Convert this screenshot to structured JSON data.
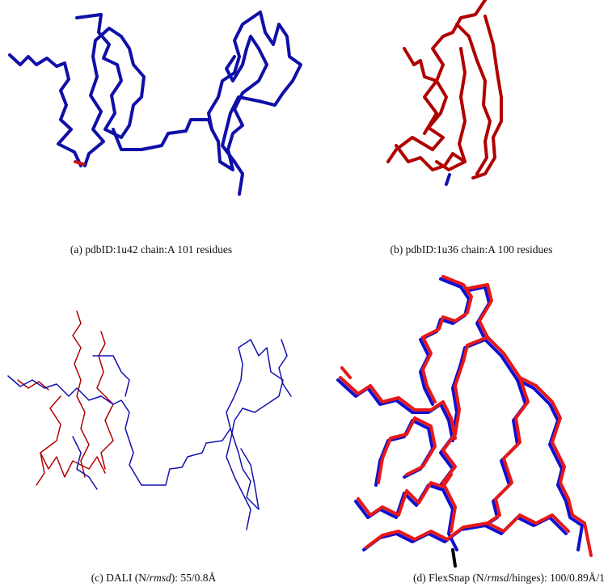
{
  "panels": [
    {
      "caption": [
        "(a) pdbID:1u42 chain:A 101 residues"
      ]
    },
    {
      "caption": [
        "(b) pdbID:1u36 chain:A 100 residues"
      ]
    },
    {
      "caption": [
        "(c) DALI (N/",
        "rmsd",
        "): 55/0.8Å"
      ]
    },
    {
      "caption": [
        "(d) FlexSnap (N/",
        "rmsd",
        "/hinges): 100/0.89Å/1"
      ]
    }
  ]
}
